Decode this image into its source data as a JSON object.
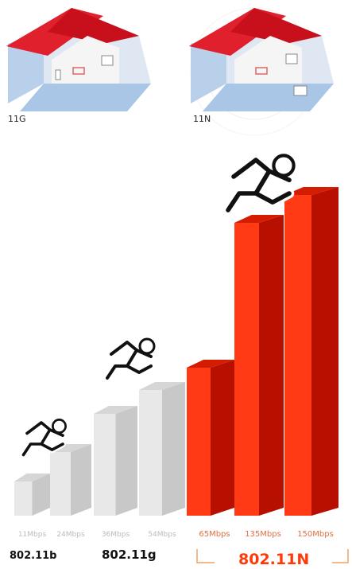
{
  "scenes": [
    {
      "label": "11G"
    },
    {
      "label": "11N"
    }
  ],
  "bars": [
    {
      "label": "11Mbps"
    },
    {
      "label": "24Mbps"
    },
    {
      "label": "36Mbps"
    },
    {
      "label": "54Mbps"
    },
    {
      "label": "65Mbps"
    },
    {
      "label": "135Mbps"
    },
    {
      "label": "150Mbps"
    }
  ],
  "standards": [
    "802.11b",
    "802.11g",
    "802.11N"
  ]
}
